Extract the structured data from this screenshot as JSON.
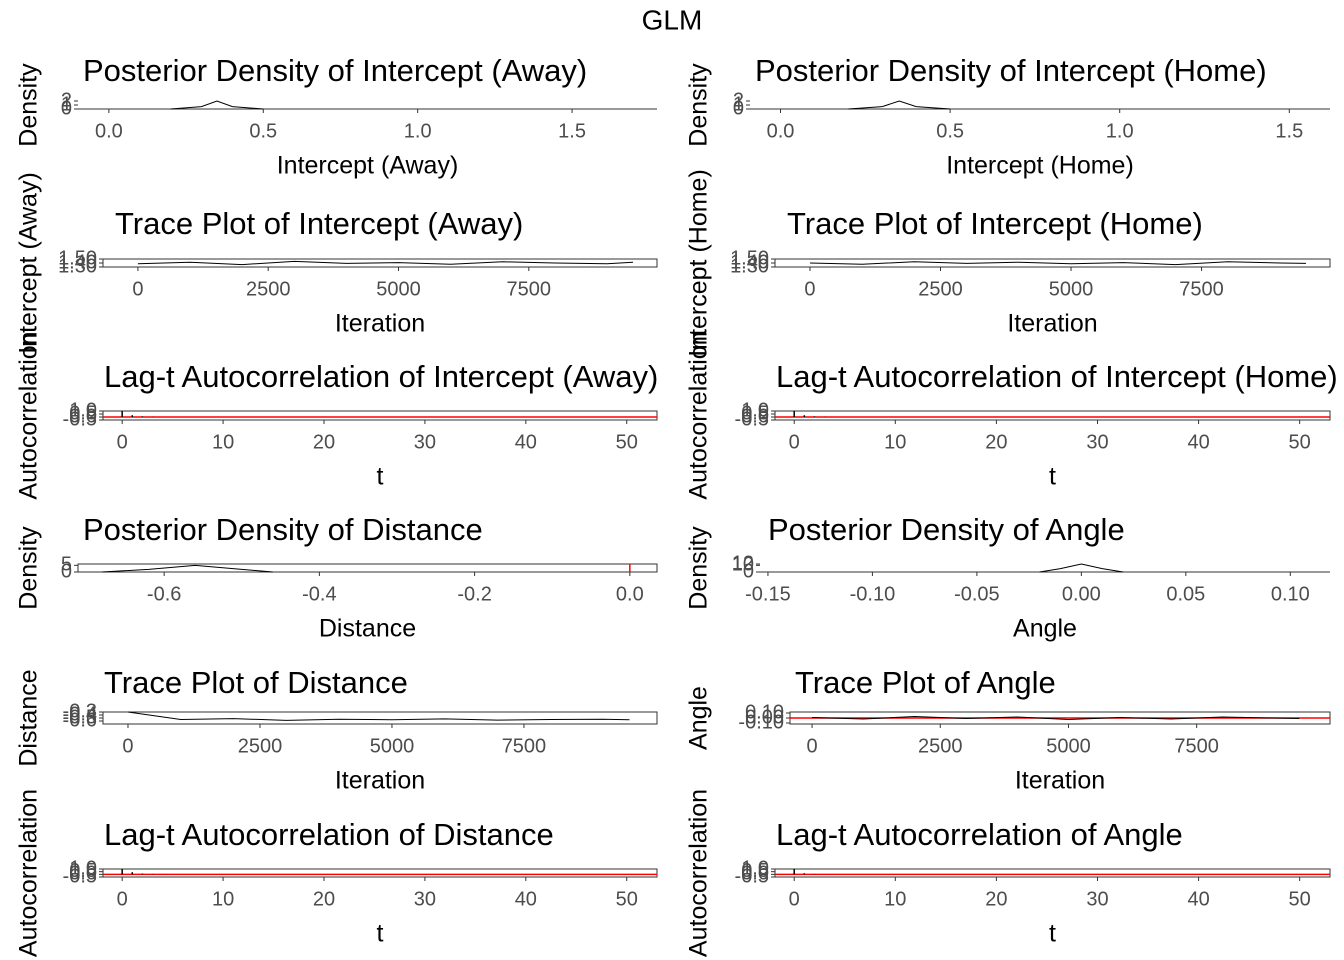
{
  "title": "GLM",
  "chart_data": [
    {
      "type": "line",
      "title": "Posterior Density of Intercept (Away)",
      "x_label": "Intercept (Away)",
      "y_label": "Density",
      "x": [
        0.2,
        0.3,
        0.35,
        0.4,
        0.5
      ],
      "values": [
        0,
        0.6,
        2,
        0.6,
        0
      ],
      "color": "#000000",
      "xlim": [
        -0.1,
        1.775
      ],
      "xticks": [
        {
          "value": 0,
          "label": "0.0"
        },
        {
          "value": 0.5,
          "label": "0.5"
        },
        {
          "value": 1,
          "label": "1.0"
        },
        {
          "value": 1.5,
          "label": "1.5"
        }
      ],
      "ylim": [
        0,
        2
      ],
      "yticks": [
        0,
        1,
        2
      ],
      "frame": false
    },
    {
      "type": "line",
      "title": "Posterior Density of Intercept (Home)",
      "x_label": "Intercept (Home)",
      "y_label": "Density",
      "x": [
        0.2,
        0.3,
        0.35,
        0.4,
        0.5
      ],
      "values": [
        0,
        0.6,
        2,
        0.6,
        0
      ],
      "color": "#000000",
      "xlim": [
        -0.09,
        1.62
      ],
      "xticks": [
        {
          "value": 0,
          "label": "0.0"
        },
        {
          "value": 0.5,
          "label": "0.5"
        },
        {
          "value": 1,
          "label": "1.0"
        },
        {
          "value": 1.5,
          "label": "1.5"
        }
      ],
      "ylim": [
        0,
        2
      ],
      "yticks": [
        0,
        1,
        2
      ],
      "frame": false
    },
    {
      "type": "line",
      "title": "Trace Plot of Intercept (Away)",
      "x_label": "Iteration",
      "y_label": "Intercept (Away)",
      "x": [
        0,
        1000,
        2000,
        3000,
        4000,
        5000,
        6000,
        7000,
        8000,
        9000,
        9500
      ],
      "values": [
        1.38,
        1.42,
        1.36,
        1.44,
        1.39,
        1.41,
        1.37,
        1.43,
        1.4,
        1.38,
        1.42
      ],
      "color": "#000000",
      "xlim": [
        -670,
        9960
      ],
      "xticks": [
        0,
        2500,
        5000,
        7500
      ],
      "ylim": [
        1.3,
        1.5
      ],
      "yticks": [
        {
          "value": 1.3,
          "label": "1.30"
        },
        {
          "value": 1.4,
          "label": "1.40"
        },
        {
          "value": 1.5,
          "label": "1.50"
        }
      ],
      "frame": true
    },
    {
      "type": "line",
      "title": "Trace Plot of Intercept (Home)",
      "x_label": "Iteration",
      "y_label": "Intercept (Home)",
      "x": [
        0,
        1000,
        2000,
        3000,
        4000,
        5000,
        6000,
        7000,
        8000,
        9000,
        9500
      ],
      "values": [
        1.4,
        1.37,
        1.43,
        1.39,
        1.42,
        1.38,
        1.41,
        1.36,
        1.43,
        1.4,
        1.39
      ],
      "color": "#000000",
      "xlim": [
        -670,
        9960
      ],
      "xticks": [
        0,
        2500,
        5000,
        7500
      ],
      "ylim": [
        1.3,
        1.5
      ],
      "yticks": [
        {
          "value": 1.3,
          "label": "1.30"
        },
        {
          "value": 1.4,
          "label": "1.40"
        },
        {
          "value": 1.5,
          "label": "1.50"
        }
      ],
      "frame": true
    },
    {
      "type": "bar",
      "title": "Lag-t Autocorrelation of Intercept (Away)",
      "x_label": "t",
      "y_label": "Autocorrelation",
      "x": [
        0,
        1,
        2,
        3,
        4,
        5,
        10,
        20,
        30,
        40,
        50
      ],
      "values": [
        1,
        0.3,
        0.1,
        0.03,
        0.01,
        0,
        0,
        0,
        0,
        0,
        0
      ],
      "color": "#000000",
      "hline": 0,
      "ref_color": "#ff0000",
      "xlim": [
        -1.9,
        53
      ],
      "xticks": [
        0,
        10,
        20,
        30,
        40,
        50
      ],
      "ylim": [
        -0.5,
        1
      ],
      "yticks": [
        {
          "value": -0.5,
          "label": "-0.5"
        },
        {
          "value": 0,
          "label": "0.0"
        },
        {
          "value": 0.5,
          "label": "0.5"
        },
        {
          "value": 1,
          "label": "1.0"
        }
      ],
      "frame": true
    },
    {
      "type": "bar",
      "title": "Lag-t Autocorrelation of Intercept (Home)",
      "x_label": "t",
      "y_label": "Autocorrelation",
      "x": [
        0,
        1,
        2,
        3,
        4,
        5,
        10,
        20,
        30,
        40,
        50
      ],
      "values": [
        1,
        0.3,
        0.1,
        0.03,
        0.01,
        0,
        0,
        0,
        0,
        0,
        0
      ],
      "color": "#000000",
      "hline": 0,
      "ref_color": "#ff0000",
      "xlim": [
        -1.9,
        53
      ],
      "xticks": [
        0,
        10,
        20,
        30,
        40,
        50
      ],
      "ylim": [
        -0.5,
        1
      ],
      "yticks": [
        {
          "value": -0.5,
          "label": "-0.5"
        },
        {
          "value": 0,
          "label": "0.0"
        },
        {
          "value": 0.5,
          "label": "0.5"
        },
        {
          "value": 1,
          "label": "1.0"
        }
      ],
      "frame": true
    },
    {
      "type": "line",
      "title": "Posterior Density of Distance",
      "x_label": "Distance",
      "y_label": "Density",
      "x": [
        -0.68,
        -0.62,
        -0.56,
        -0.5,
        -0.46
      ],
      "values": [
        0,
        2,
        5,
        2,
        0
      ],
      "color": "#000000",
      "vline": 0,
      "ref_color": "#ff0000",
      "xlim": [
        -0.711,
        0.035
      ],
      "xticks": [
        {
          "value": -0.6,
          "label": "-0.6"
        },
        {
          "value": -0.4,
          "label": "-0.4"
        },
        {
          "value": -0.2,
          "label": "-0.2"
        },
        {
          "value": 0,
          "label": "0.0"
        }
      ],
      "ylim": [
        0,
        6
      ],
      "yticks": [
        0,
        5
      ],
      "frame": true
    },
    {
      "type": "line",
      "title": "Posterior Density of Angle",
      "x_label": "Angle",
      "y_label": "Density",
      "x": [
        -0.02,
        -0.01,
        0,
        0.01,
        0.02
      ],
      "values": [
        0,
        5,
        12,
        5,
        0
      ],
      "color": "#000000",
      "xlim": [
        -0.1538,
        0.119
      ],
      "xticks": [
        {
          "value": -0.15,
          "label": "-0.15"
        },
        {
          "value": -0.1,
          "label": "-0.10"
        },
        {
          "value": -0.05,
          "label": "-0.05"
        },
        {
          "value": 0,
          "label": "0.00"
        },
        {
          "value": 0.05,
          "label": "0.05"
        },
        {
          "value": 0.1,
          "label": "0.10"
        }
      ],
      "ylim": [
        0,
        12
      ],
      "yticks": [
        0,
        10,
        12
      ],
      "frame": false
    },
    {
      "type": "line",
      "title": "Trace Plot of Distance",
      "x_label": "Iteration",
      "y_label": "Distance",
      "x": [
        0,
        1000,
        2000,
        3000,
        4000,
        5000,
        6000,
        7000,
        8000,
        9000,
        9500
      ],
      "values": [
        -0.3,
        -0.55,
        -0.52,
        -0.58,
        -0.54,
        -0.56,
        -0.53,
        -0.57,
        -0.55,
        -0.54,
        -0.56
      ],
      "color": "#000000",
      "xlim": [
        -473,
        10020
      ],
      "xticks": [
        0,
        2500,
        5000,
        7500
      ],
      "ylim": [
        -0.7,
        -0.3
      ],
      "yticks": [
        {
          "value": -0.6,
          "label": "-0.6"
        },
        {
          "value": -0.5,
          "label": "-0.5"
        },
        {
          "value": -0.4,
          "label": "-0.4"
        },
        {
          "value": -0.3,
          "label": "-0.3"
        }
      ],
      "frame": true
    },
    {
      "type": "line",
      "title": "Trace Plot of Angle",
      "x_label": "Iteration",
      "y_label": "Angle",
      "x": [
        0,
        1000,
        2000,
        3000,
        4000,
        5000,
        6000,
        7000,
        8000,
        9000,
        9500
      ],
      "values": [
        0.01,
        -0.02,
        0.03,
        -0.01,
        0.02,
        -0.03,
        0.01,
        -0.02,
        0.02,
        0,
        -0.01
      ],
      "color": "#000000",
      "hline": 0,
      "ref_color": "#ff0000",
      "xlim": [
        -430,
        10100
      ],
      "xticks": [
        0,
        2500,
        5000,
        7500
      ],
      "ylim": [
        -0.12,
        0.12
      ],
      "yticks": [
        {
          "value": -0.1,
          "label": "-0.10"
        },
        {
          "value": 0,
          "label": "0.00"
        },
        {
          "value": 0.1,
          "label": "0.10"
        }
      ],
      "frame": true
    },
    {
      "type": "bar",
      "title": "Lag-t Autocorrelation of Distance",
      "x_label": "t",
      "y_label": "Autocorrelation",
      "x": [
        0,
        1,
        2,
        3,
        4,
        5,
        10,
        20,
        30,
        40,
        50
      ],
      "values": [
        1,
        0.4,
        0.15,
        0.05,
        0.02,
        0,
        0,
        0,
        0,
        0,
        0
      ],
      "color": "#000000",
      "hline": 0,
      "ref_color": "#ff0000",
      "xlim": [
        -1.9,
        53
      ],
      "xticks": [
        0,
        10,
        20,
        30,
        40,
        50
      ],
      "ylim": [
        -0.5,
        1
      ],
      "yticks": [
        {
          "value": -0.5,
          "label": "-0.5"
        },
        {
          "value": 0,
          "label": "0.0"
        },
        {
          "value": 0.5,
          "label": "0.5"
        },
        {
          "value": 1,
          "label": "1.0"
        }
      ],
      "frame": true
    },
    {
      "type": "bar",
      "title": "Lag-t Autocorrelation of Angle",
      "x_label": "t",
      "y_label": "Autocorrelation",
      "x": [
        0,
        1,
        2,
        3,
        4,
        5,
        10,
        20,
        30,
        40,
        50
      ],
      "values": [
        1,
        0.2,
        0.05,
        0.01,
        0,
        0,
        0,
        0,
        0,
        0,
        0
      ],
      "color": "#000000",
      "hline": 0,
      "ref_color": "#ff0000",
      "xlim": [
        -1.9,
        53
      ],
      "xticks": [
        0,
        10,
        20,
        30,
        40,
        50
      ],
      "ylim": [
        -0.5,
        1
      ],
      "yticks": [
        {
          "value": -0.5,
          "label": "-0.5"
        },
        {
          "value": 0,
          "label": "0.0"
        },
        {
          "value": 0.5,
          "label": "0.5"
        },
        {
          "value": 1,
          "label": "1.0"
        }
      ],
      "frame": true
    }
  ]
}
